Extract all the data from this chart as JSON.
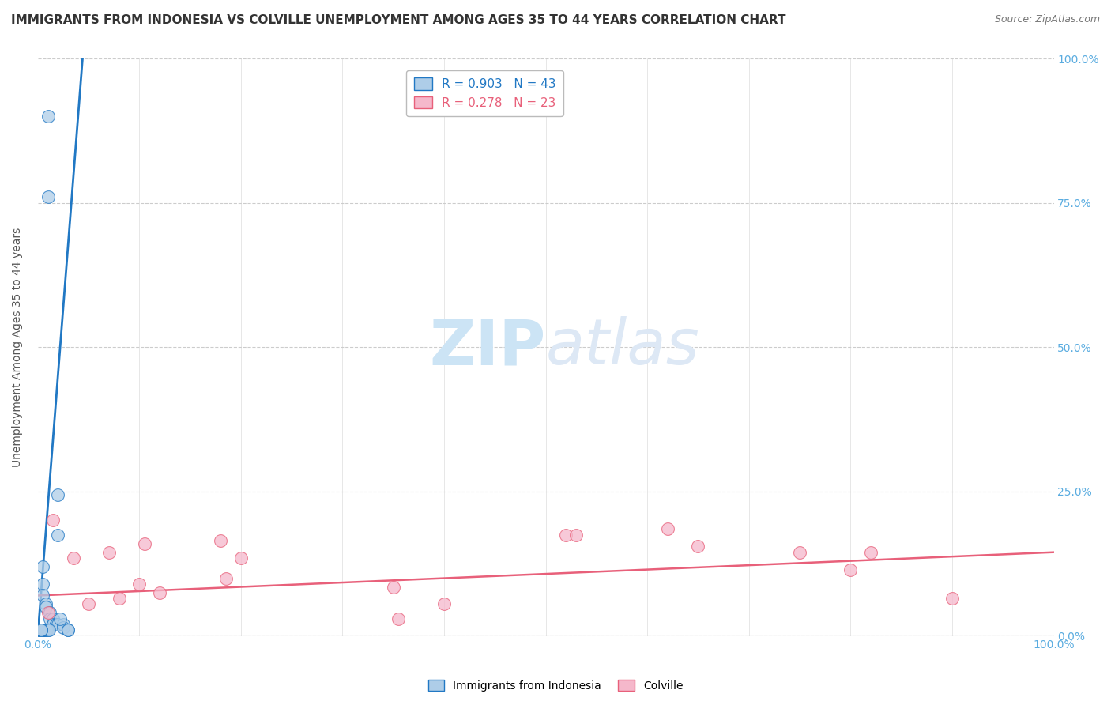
{
  "title": "IMMIGRANTS FROM INDONESIA VS COLVILLE UNEMPLOYMENT AMONG AGES 35 TO 44 YEARS CORRELATION CHART",
  "source": "Source: ZipAtlas.com",
  "ylabel": "Unemployment Among Ages 35 to 44 years",
  "blue_label": "Immigrants from Indonesia",
  "pink_label": "Colville",
  "blue_R": "R = 0.903",
  "blue_N": "N = 43",
  "pink_R": "R = 0.278",
  "pink_N": "N = 23",
  "blue_color": "#aecde8",
  "pink_color": "#f5b8cb",
  "blue_line_color": "#2178c4",
  "pink_line_color": "#e8607a",
  "background_color": "#ffffff",
  "grid_color": "#cccccc",
  "tick_color": "#5aace0",
  "xlim": [
    0,
    1.0
  ],
  "ylim": [
    0,
    1.0
  ],
  "xtick_positions": [
    0.0,
    1.0
  ],
  "xtick_labels": [
    "0.0%",
    "100.0%"
  ],
  "ytick_positions": [
    0.0,
    0.25,
    0.5,
    0.75,
    1.0
  ],
  "ytick_labels": [
    "0.0%",
    "25.0%",
    "50.0%",
    "75.0%",
    "100.0%"
  ],
  "blue_points_x": [
    0.02,
    0.02,
    0.005,
    0.005,
    0.005,
    0.008,
    0.008,
    0.01,
    0.01,
    0.012,
    0.012,
    0.015,
    0.015,
    0.018,
    0.018,
    0.02,
    0.025,
    0.025,
    0.03,
    0.03,
    0.003,
    0.003,
    0.003,
    0.004,
    0.004,
    0.004,
    0.005,
    0.005,
    0.006,
    0.006,
    0.007,
    0.007,
    0.008,
    0.009,
    0.01,
    0.011,
    0.002,
    0.002,
    0.002,
    0.003,
    0.003,
    0.003,
    0.022
  ],
  "blue_points_y": [
    0.245,
    0.175,
    0.12,
    0.09,
    0.07,
    0.055,
    0.05,
    0.9,
    0.76,
    0.04,
    0.03,
    0.03,
    0.02,
    0.02,
    0.02,
    0.02,
    0.02,
    0.015,
    0.01,
    0.01,
    0.01,
    0.01,
    0.01,
    0.01,
    0.01,
    0.01,
    0.01,
    0.01,
    0.01,
    0.01,
    0.01,
    0.01,
    0.01,
    0.01,
    0.01,
    0.01,
    0.01,
    0.01,
    0.01,
    0.01,
    0.01,
    0.01,
    0.03
  ],
  "pink_points_x": [
    0.015,
    0.035,
    0.07,
    0.1,
    0.105,
    0.18,
    0.185,
    0.2,
    0.35,
    0.355,
    0.52,
    0.53,
    0.62,
    0.75,
    0.8,
    0.82,
    0.01,
    0.05,
    0.08,
    0.12,
    0.4,
    0.65,
    0.9
  ],
  "pink_points_y": [
    0.2,
    0.135,
    0.145,
    0.09,
    0.16,
    0.165,
    0.1,
    0.135,
    0.085,
    0.03,
    0.175,
    0.175,
    0.185,
    0.145,
    0.115,
    0.145,
    0.04,
    0.055,
    0.065,
    0.075,
    0.055,
    0.155,
    0.065
  ],
  "blue_trend_x": [
    0.0,
    0.045
  ],
  "blue_trend_y": [
    0.0,
    1.02
  ],
  "pink_trend_x": [
    0.0,
    1.0
  ],
  "pink_trend_y": [
    0.07,
    0.145
  ],
  "watermark_color": "#cce4f5",
  "title_fontsize": 11,
  "axis_fontsize": 10,
  "legend_fontsize": 11
}
